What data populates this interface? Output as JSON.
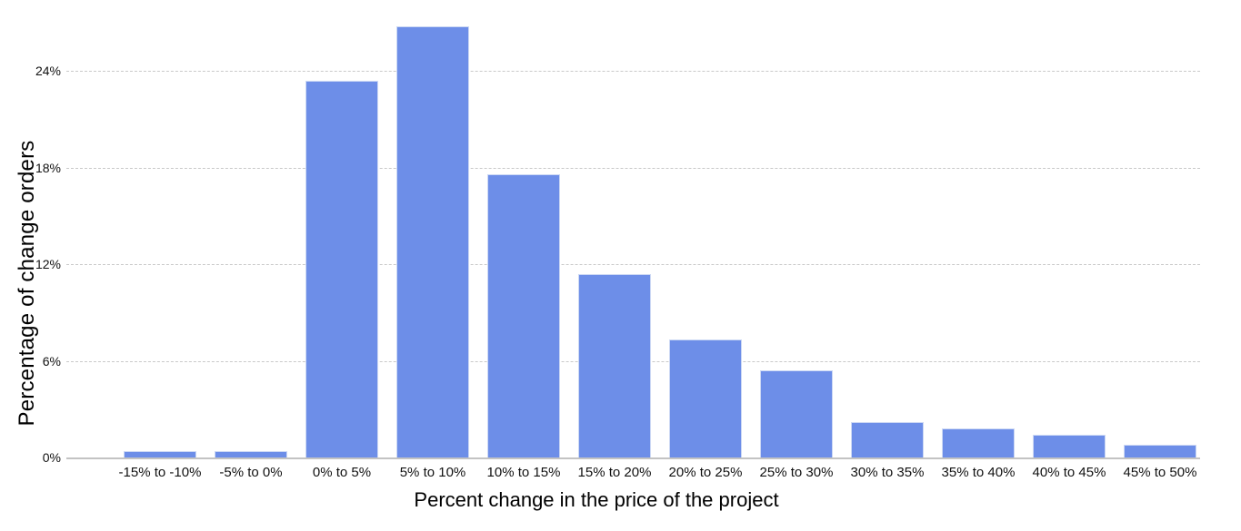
{
  "chart_data": {
    "type": "bar",
    "title": "",
    "xlabel": "Percent change in the price of the project",
    "ylabel": "Percentage of change orders",
    "categories": [
      "-15% to -10%",
      "-5% to 0%",
      "0% to 5%",
      "5% to 10%",
      "10% to 15%",
      "15% to 20%",
      "20% to 25%",
      "25% to 30%",
      "30% to 35%",
      "35% to 40%",
      "40% to 45%",
      "45% to 50%"
    ],
    "values": [
      0.4,
      0.4,
      23.4,
      26.8,
      17.6,
      11.4,
      7.3,
      5.4,
      2.2,
      1.8,
      1.4,
      0.8
    ],
    "value_unit": "%",
    "yticks": [
      {
        "value": 0,
        "label": "0%"
      },
      {
        "value": 6,
        "label": "6%"
      },
      {
        "value": 12,
        "label": "12%"
      },
      {
        "value": 18,
        "label": "18%"
      },
      {
        "value": 24,
        "label": "24%"
      }
    ],
    "ylim": [
      0,
      28
    ],
    "grid": "horizontal-dashed",
    "legend_position": "none",
    "colors": {
      "bar_fill": "#6d8ee8",
      "bar_border": "#ccd8f4",
      "gridline": "#c9c9c9",
      "axis_line": "#c3c3c3",
      "text": "#000000",
      "background": "#ffffff"
    }
  }
}
